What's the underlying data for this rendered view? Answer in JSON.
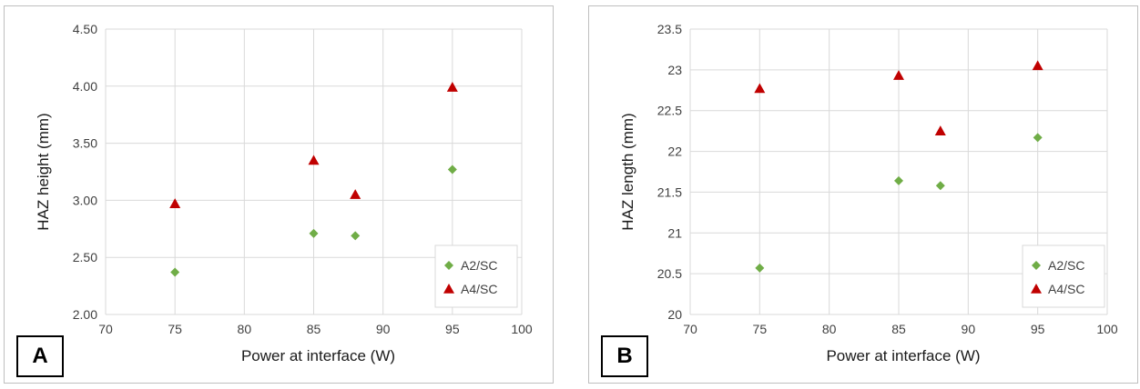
{
  "colors": {
    "a2_sc": "#70AD47",
    "a4_sc": "#C00000",
    "grid": "#d9d9d9",
    "axis": "#bfbfbf"
  },
  "panels": [
    {
      "label": "A"
    },
    {
      "label": "B"
    }
  ],
  "chart_data": [
    {
      "type": "scatter",
      "panel": "A",
      "xlabel": "Power at interface (W)",
      "ylabel": "HAZ height (mm)",
      "xlim": [
        70,
        100
      ],
      "ylim": [
        2.0,
        4.5
      ],
      "xticks": [
        "70",
        "75",
        "80",
        "85",
        "90",
        "95",
        "100"
      ],
      "yticks": [
        "2.00",
        "2.50",
        "3.00",
        "3.50",
        "4.00",
        "4.50"
      ],
      "grid": true,
      "legend_position": "bottom-right",
      "series": [
        {
          "name": "A2/SC",
          "marker": "diamond",
          "color": "#70AD47",
          "points": [
            {
              "x": 75,
              "y": 2.37
            },
            {
              "x": 85,
              "y": 2.71
            },
            {
              "x": 88,
              "y": 2.69
            },
            {
              "x": 95,
              "y": 3.27
            }
          ]
        },
        {
          "name": "A4/SC",
          "marker": "triangle",
          "color": "#C00000",
          "points": [
            {
              "x": 75,
              "y": 2.97
            },
            {
              "x": 85,
              "y": 3.35
            },
            {
              "x": 88,
              "y": 3.05
            },
            {
              "x": 95,
              "y": 3.99
            }
          ]
        }
      ]
    },
    {
      "type": "scatter",
      "panel": "B",
      "xlabel": "Power at interface (W)",
      "ylabel": "HAZ length (mm)",
      "xlim": [
        70,
        100
      ],
      "ylim": [
        20,
        23.5
      ],
      "xticks": [
        "70",
        "75",
        "80",
        "85",
        "90",
        "95",
        "100"
      ],
      "yticks": [
        "20",
        "20.5",
        "21",
        "21.5",
        "22",
        "22.5",
        "23",
        "23.5"
      ],
      "grid": true,
      "legend_position": "bottom-right",
      "series": [
        {
          "name": "A2/SC",
          "marker": "diamond",
          "color": "#70AD47",
          "points": [
            {
              "x": 75,
              "y": 20.57
            },
            {
              "x": 85,
              "y": 21.64
            },
            {
              "x": 88,
              "y": 21.58
            },
            {
              "x": 95,
              "y": 22.17
            }
          ]
        },
        {
          "name": "A4/SC",
          "marker": "triangle",
          "color": "#C00000",
          "points": [
            {
              "x": 75,
              "y": 22.77
            },
            {
              "x": 85,
              "y": 22.93
            },
            {
              "x": 88,
              "y": 22.25
            },
            {
              "x": 95,
              "y": 23.05
            }
          ]
        }
      ]
    }
  ]
}
